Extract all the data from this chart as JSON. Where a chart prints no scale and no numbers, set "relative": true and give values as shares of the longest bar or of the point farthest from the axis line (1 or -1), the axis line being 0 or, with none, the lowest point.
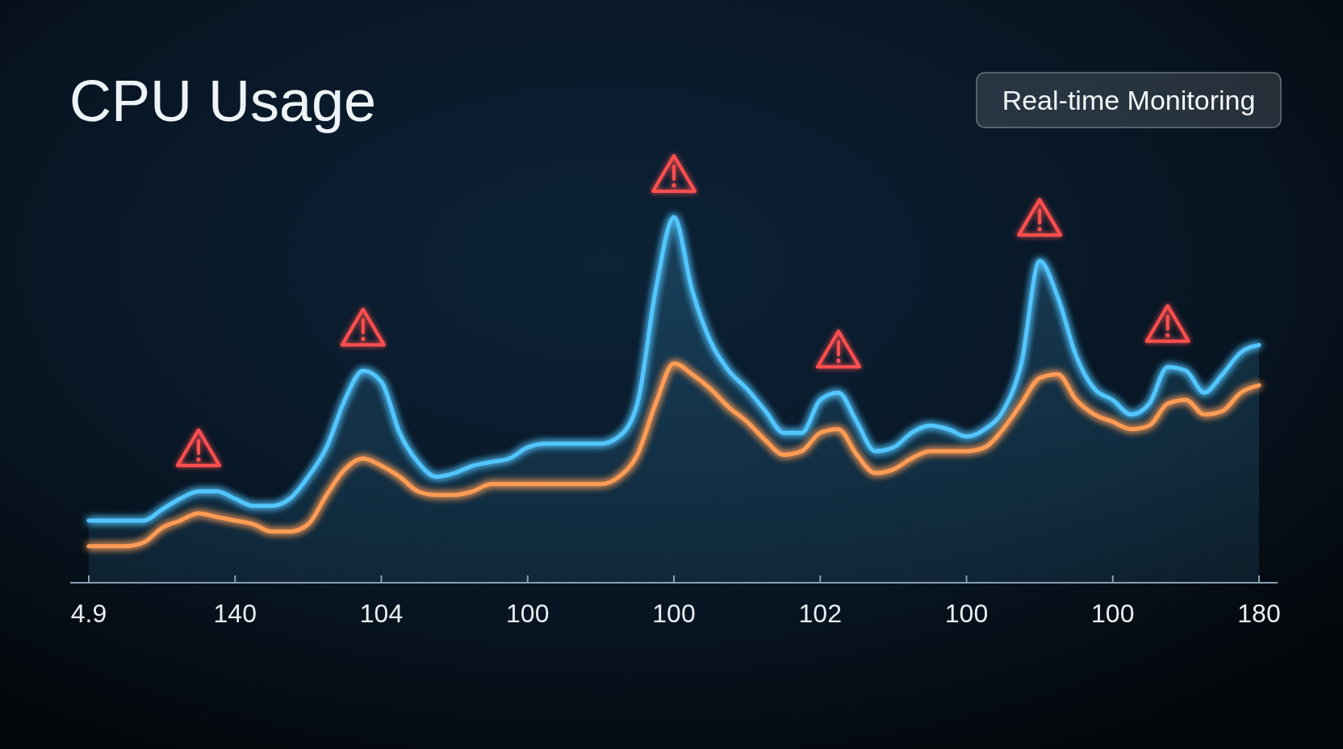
{
  "chart_data": {
    "type": "line",
    "title": "CPU Usage",
    "subtitle": "Real-time Monitoring",
    "relative": true,
    "categories": [
      "4.9",
      null,
      null,
      null,
      null,
      null,
      null,
      null,
      "140",
      null,
      null,
      null,
      null,
      null,
      null,
      null,
      "104",
      null,
      null,
      null,
      null,
      null,
      null,
      null,
      "100",
      null,
      null,
      null,
      null,
      null,
      null,
      null,
      "100",
      null,
      null,
      null,
      null,
      null,
      null,
      null,
      "102",
      null,
      null,
      null,
      null,
      null,
      null,
      null,
      "100",
      null,
      null,
      null,
      null,
      null,
      null,
      null,
      "100",
      null,
      null,
      null,
      null,
      null,
      null,
      null,
      "180"
    ],
    "series": [
      {
        "type": "area",
        "color": "#52c6ff",
        "values": [
          0.17,
          0.17,
          0.17,
          0.17,
          0.2,
          0.23,
          0.25,
          0.25,
          0.23,
          0.21,
          0.21,
          0.23,
          0.29,
          0.37,
          0.5,
          0.58,
          0.55,
          0.41,
          0.33,
          0.29,
          0.3,
          0.32,
          0.33,
          0.34,
          0.37,
          0.38,
          0.38,
          0.38,
          0.38,
          0.4,
          0.49,
          0.8,
          1,
          0.8,
          0.66,
          0.58,
          0.53,
          0.47,
          0.41,
          0.41,
          0.5,
          0.52,
          0.44,
          0.36,
          0.37,
          0.41,
          0.43,
          0.42,
          0.4,
          0.42,
          0.47,
          0.6,
          0.88,
          0.78,
          0.62,
          0.53,
          0.5,
          0.46,
          0.49,
          0.59,
          0.58,
          0.52,
          0.57,
          0.63,
          0.65
        ]
      },
      {
        "color": "#ff9c55",
        "values": [
          0.1,
          0.1,
          0.1,
          0.11,
          0.15,
          0.17,
          0.19,
          0.18,
          0.17,
          0.16,
          0.14,
          0.14,
          0.16,
          0.24,
          0.31,
          0.34,
          0.32,
          0.29,
          0.25,
          0.24,
          0.24,
          0.25,
          0.27,
          0.27,
          0.27,
          0.27,
          0.27,
          0.27,
          0.27,
          0.29,
          0.35,
          0.49,
          0.6,
          0.57,
          0.53,
          0.48,
          0.44,
          0.39,
          0.35,
          0.36,
          0.41,
          0.42,
          0.35,
          0.3,
          0.31,
          0.34,
          0.36,
          0.36,
          0.36,
          0.37,
          0.42,
          0.49,
          0.56,
          0.57,
          0.5,
          0.46,
          0.44,
          0.42,
          0.43,
          0.49,
          0.5,
          0.46,
          0.47,
          0.52,
          0.54
        ]
      }
    ]
  }
}
